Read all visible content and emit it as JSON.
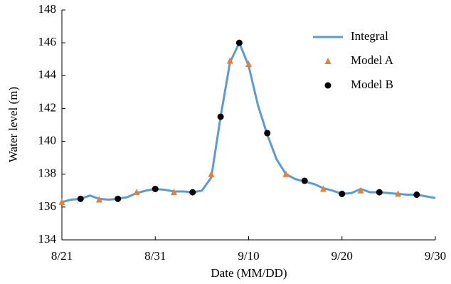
{
  "chart_data": {
    "type": "line",
    "xlabel": "Date (MM/DD)",
    "ylabel": "Water level (m)",
    "xlim": [
      "8/21",
      "9/30"
    ],
    "xticks": [
      "8/21",
      "8/31",
      "9/10",
      "9/20",
      "9/30"
    ],
    "ylim": [
      134,
      148
    ],
    "yticks": [
      134,
      136,
      138,
      140,
      142,
      144,
      146,
      148
    ],
    "grid": false,
    "legend": "upper right",
    "series": [
      {
        "name": "Integral",
        "color": "#5b9bd5",
        "marker": "line",
        "x": [
          "8/21",
          "8/22",
          "8/23",
          "8/24",
          "8/25",
          "8/26",
          "8/27",
          "8/28",
          "8/29",
          "8/30",
          "8/31",
          "9/1",
          "9/2",
          "9/3",
          "9/4",
          "9/5",
          "9/6",
          "9/7",
          "9/8",
          "9/9",
          "9/10",
          "9/11",
          "9/12",
          "9/13",
          "9/14",
          "9/15",
          "9/16",
          "9/17",
          "9/18",
          "9/19",
          "9/20",
          "9/21",
          "9/22",
          "9/23",
          "9/24",
          "9/25",
          "9/26",
          "9/27",
          "9/28",
          "9/29",
          "9/30"
        ],
        "values": [
          136.3,
          136.45,
          136.5,
          136.7,
          136.5,
          136.45,
          136.5,
          136.6,
          136.85,
          137.0,
          137.1,
          137.05,
          136.95,
          136.95,
          136.9,
          137.0,
          137.8,
          141.5,
          144.8,
          146.0,
          144.6,
          142.2,
          140.4,
          138.9,
          138.0,
          137.7,
          137.55,
          137.4,
          137.15,
          137.0,
          136.8,
          136.85,
          137.1,
          136.9,
          136.9,
          136.85,
          136.8,
          136.75,
          136.75,
          136.65,
          136.55
        ]
      },
      {
        "name": "Model A",
        "color": "#ed7d31",
        "marker": "triangle",
        "x": [
          "8/21",
          "8/25",
          "8/29",
          "9/2",
          "9/6",
          "9/8",
          "9/10",
          "9/14",
          "9/18",
          "9/22",
          "9/26"
        ],
        "values": [
          136.3,
          136.45,
          136.9,
          136.9,
          138.0,
          144.9,
          144.7,
          138.0,
          137.1,
          137.0,
          136.8
        ]
      },
      {
        "name": "Model B",
        "color": "#000000",
        "marker": "circle",
        "x": [
          "8/23",
          "8/27",
          "8/31",
          "9/4",
          "9/7",
          "9/9",
          "9/12",
          "9/16",
          "9/20",
          "9/24",
          "9/28"
        ],
        "values": [
          136.5,
          136.5,
          137.1,
          136.9,
          141.5,
          146.0,
          140.5,
          137.6,
          136.8,
          136.9,
          136.75
        ]
      }
    ]
  }
}
